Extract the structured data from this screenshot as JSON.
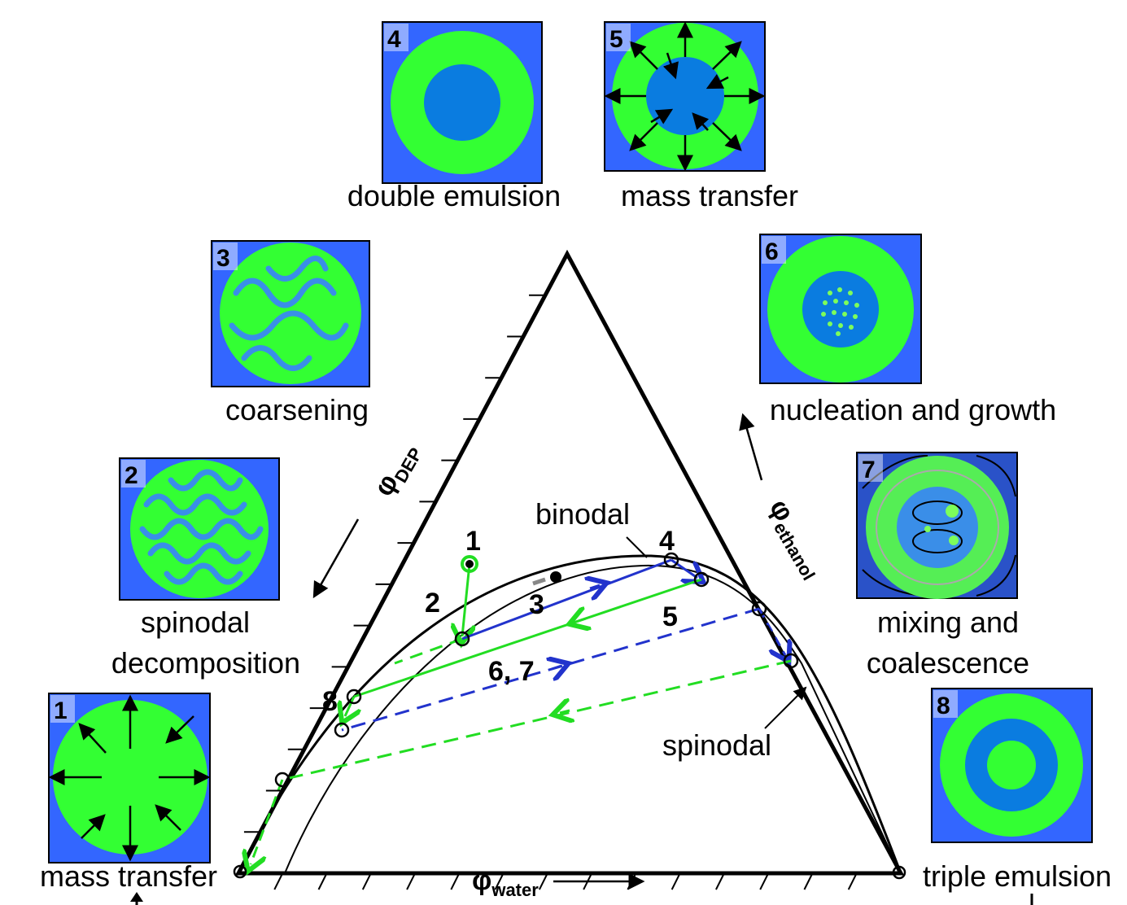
{
  "panels": [
    {
      "number": "1",
      "caption": [
        "mass transfer"
      ]
    },
    {
      "number": "2",
      "caption": [
        "spinodal",
        "decomposition"
      ]
    },
    {
      "number": "3",
      "caption": [
        "coarsening"
      ]
    },
    {
      "number": "4",
      "caption": [
        "double emulsion"
      ]
    },
    {
      "number": "5",
      "caption": [
        "mass transfer"
      ]
    },
    {
      "number": "6",
      "caption": [
        "nucleation and growth"
      ]
    },
    {
      "number": "7",
      "caption": [
        "mixing and",
        "coalescence"
      ]
    },
    {
      "number": "8",
      "caption": [
        "triple emulsion"
      ]
    }
  ],
  "axes": {
    "left": {
      "symbol": "φ",
      "sub": "DEP"
    },
    "right": {
      "symbol": "φ",
      "sub": "ethanol"
    },
    "bottom": {
      "symbol": "φ",
      "sub": "water"
    }
  },
  "curves": {
    "binodal": "binodal",
    "spinodal": "spinodal"
  },
  "points": [
    "1",
    "2",
    "3",
    "4",
    "5",
    "6, 7",
    "8"
  ]
}
